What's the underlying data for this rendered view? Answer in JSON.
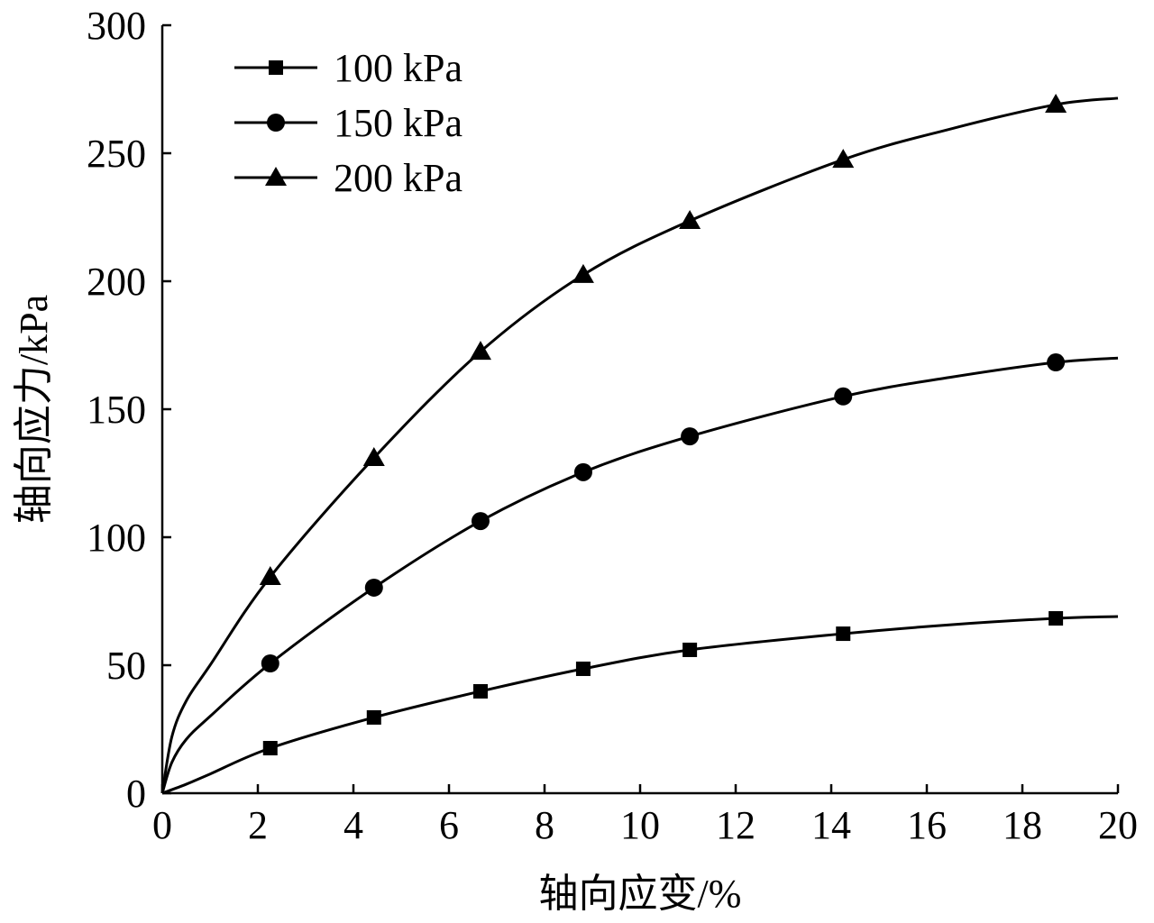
{
  "chart_data": {
    "type": "line",
    "title": "",
    "xlabel": "轴向应变/%",
    "ylabel": "轴向应力/kPa",
    "xlim": [
      0,
      20
    ],
    "ylim": [
      0,
      300
    ],
    "xticks": [
      0,
      2,
      4,
      6,
      8,
      10,
      12,
      14,
      16,
      18,
      20
    ],
    "yticks": [
      0,
      50,
      100,
      150,
      200,
      250,
      300
    ],
    "grid": false,
    "legend_position": "top-left",
    "series": [
      {
        "name": "100 kPa",
        "marker": "square",
        "marker_points": [
          [
            2.26,
            17.6
          ],
          [
            4.43,
            29.6
          ],
          [
            6.66,
            39.8
          ],
          [
            8.81,
            48.6
          ],
          [
            11.04,
            56.0
          ],
          [
            14.25,
            62.3
          ],
          [
            18.7,
            68.3
          ]
        ],
        "curve": [
          [
            0,
            0
          ],
          [
            0.5,
            3.5
          ],
          [
            1,
            7.5
          ],
          [
            2.26,
            17.6
          ],
          [
            4.43,
            29.6
          ],
          [
            6.66,
            39.8
          ],
          [
            8.81,
            48.6
          ],
          [
            11.04,
            56.0
          ],
          [
            14.25,
            62.3
          ],
          [
            16.5,
            65.8
          ],
          [
            18.7,
            68.3
          ],
          [
            20,
            69
          ]
        ]
      },
      {
        "name": "150 kPa",
        "marker": "circle",
        "marker_points": [
          [
            2.26,
            50.7
          ],
          [
            4.43,
            80.3
          ],
          [
            6.66,
            106.3
          ],
          [
            8.81,
            125.4
          ],
          [
            11.04,
            139.4
          ],
          [
            14.25,
            155.0
          ],
          [
            18.7,
            168.3
          ]
        ],
        "curve": [
          [
            0,
            0
          ],
          [
            0.2,
            12
          ],
          [
            0.5,
            21
          ],
          [
            1,
            30
          ],
          [
            2.26,
            50.7
          ],
          [
            4.43,
            80.3
          ],
          [
            6.66,
            106.3
          ],
          [
            8.81,
            125.4
          ],
          [
            11.04,
            139.4
          ],
          [
            14.25,
            155.0
          ],
          [
            16.5,
            162.5
          ],
          [
            18.7,
            168.3
          ],
          [
            20,
            170
          ]
        ]
      },
      {
        "name": "200 kPa",
        "marker": "triangle",
        "marker_points": [
          [
            2.26,
            84.5
          ],
          [
            4.43,
            131.0
          ],
          [
            6.66,
            172.5
          ],
          [
            8.81,
            202.5
          ],
          [
            11.04,
            223.6
          ],
          [
            14.25,
            247.5
          ],
          [
            18.7,
            269.0
          ]
        ],
        "curve": [
          [
            0,
            0
          ],
          [
            0.2,
            22
          ],
          [
            0.5,
            36
          ],
          [
            1,
            50
          ],
          [
            2.26,
            84.5
          ],
          [
            4.43,
            131.0
          ],
          [
            6.66,
            172.5
          ],
          [
            8.81,
            202.5
          ],
          [
            11.04,
            223.6
          ],
          [
            14.25,
            247.5
          ],
          [
            16.5,
            259.5
          ],
          [
            18.7,
            269.0
          ],
          [
            20,
            271.5
          ]
        ]
      }
    ]
  }
}
